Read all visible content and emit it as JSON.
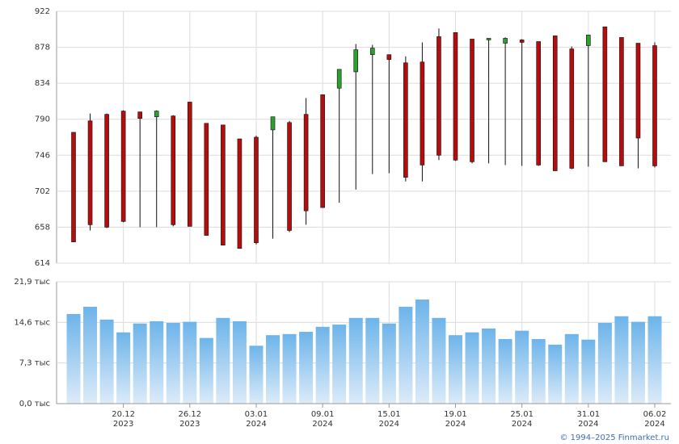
{
  "chart_data": [
    {
      "type": "candlestick",
      "categories": [
        null,
        null,
        null,
        "20.12",
        null,
        null,
        null,
        "26.12",
        null,
        null,
        null,
        "03.01",
        null,
        null,
        null,
        "09.01",
        null,
        null,
        null,
        "15.01",
        null,
        null,
        null,
        "19.01",
        null,
        null,
        null,
        "25.01",
        null,
        null,
        null,
        "31.01",
        null,
        null,
        null,
        "06.02"
      ],
      "category_years": [
        null,
        null,
        null,
        "2023",
        null,
        null,
        null,
        "2023",
        null,
        null,
        null,
        "2024",
        null,
        null,
        null,
        "2024",
        null,
        null,
        null,
        "2024",
        null,
        null,
        null,
        "2024",
        null,
        null,
        null,
        "2024",
        null,
        null,
        null,
        "2024",
        null,
        null,
        null,
        "2024"
      ],
      "open": [
        774,
        788,
        796,
        800,
        799,
        793,
        794,
        811,
        785,
        783,
        766,
        768,
        777,
        786,
        796,
        820,
        828,
        848,
        869,
        869,
        859,
        860,
        891,
        896,
        888,
        887,
        883,
        887,
        885,
        892,
        876,
        880,
        903,
        890,
        883,
        880
      ],
      "high": [
        774,
        797,
        797,
        801,
        799,
        801,
        795,
        811,
        785,
        783,
        766,
        770,
        793,
        788,
        816,
        820,
        851,
        882,
        881,
        869,
        867,
        884,
        901,
        896,
        888,
        889,
        890,
        888,
        885,
        892,
        879,
        893,
        903,
        890,
        883,
        884
      ],
      "low": [
        640,
        654,
        657,
        664,
        658,
        658,
        659,
        659,
        648,
        636,
        632,
        637,
        644,
        652,
        661,
        682,
        688,
        704,
        723,
        724,
        714,
        714,
        740,
        739,
        736,
        736,
        734,
        733,
        733,
        727,
        729,
        732,
        738,
        733,
        730,
        731
      ],
      "close": [
        640,
        661,
        658,
        665,
        791,
        800,
        661,
        659,
        648,
        636,
        632,
        639,
        793,
        654,
        678,
        682,
        851,
        875,
        877,
        863,
        719,
        734,
        746,
        740,
        738,
        889,
        889,
        884,
        734,
        727,
        730,
        893,
        738,
        733,
        767,
        733
      ],
      "ylim": [
        614,
        922
      ],
      "yticks": [
        614,
        658,
        702,
        746,
        790,
        834,
        878,
        922
      ],
      "up_color": "#2ca02c",
      "down_color": "#b50d0d",
      "grid": true
    },
    {
      "type": "bar",
      "values": [
        16.1,
        17.4,
        15.1,
        12.8,
        14.4,
        14.8,
        14.5,
        14.7,
        11.8,
        15.4,
        14.8,
        10.4,
        12.3,
        12.5,
        12.9,
        13.8,
        14.2,
        15.4,
        15.4,
        14.4,
        17.4,
        18.7,
        15.4,
        12.3,
        12.8,
        13.5,
        11.6,
        13.1,
        11.6,
        10.6,
        12.5,
        11.5,
        14.5,
        15.7,
        14.7,
        15.7
      ],
      "ylim": [
        0,
        21.9
      ],
      "yticks": [
        {
          "value": 0,
          "label": "0,0 тыс"
        },
        {
          "value": 7.3,
          "label": "7,3 тыс"
        },
        {
          "value": 14.6,
          "label": "14,6 тыс"
        },
        {
          "value": 21.9,
          "label": "21,9 тыс"
        }
      ],
      "color": "#72b8ec",
      "grid": true
    }
  ],
  "footer": "© 1994–2025 Finmarket.ru"
}
